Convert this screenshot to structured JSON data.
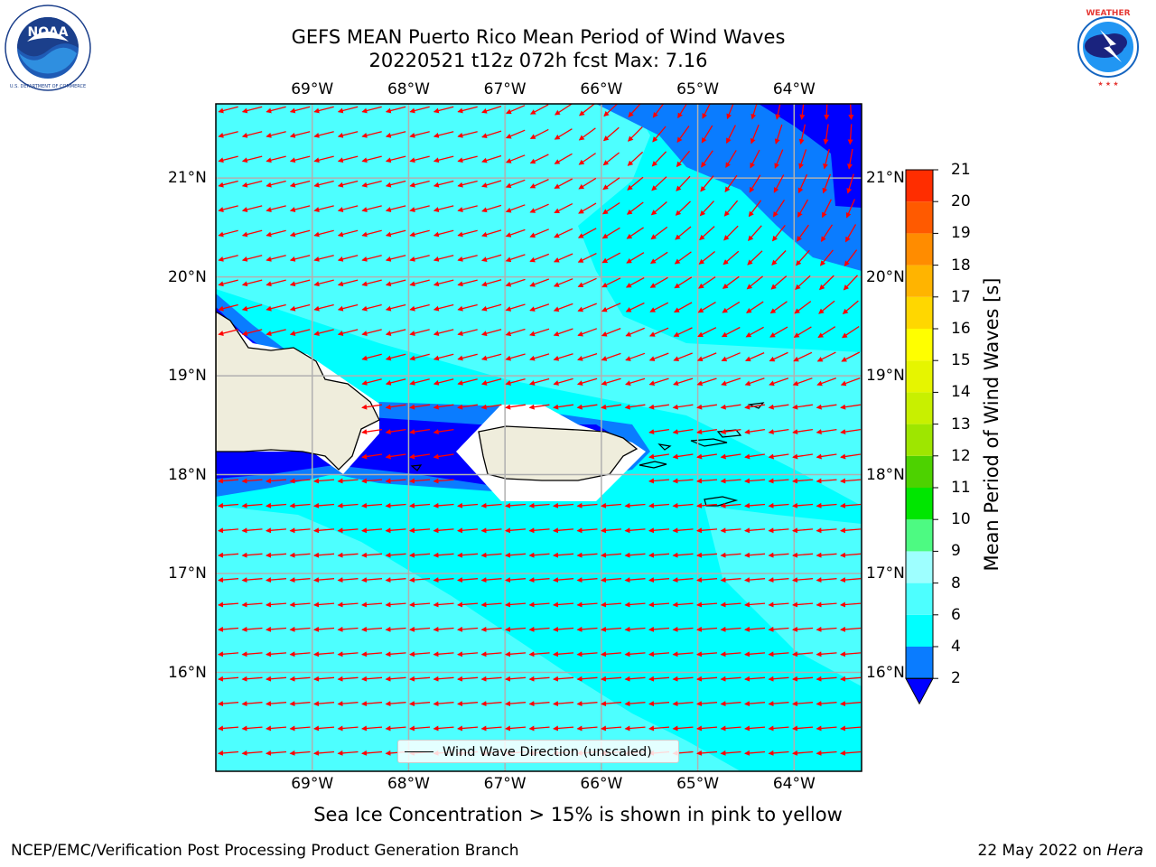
{
  "title": {
    "line1": "GEFS MEAN Puerto Rico Mean Period of Wind Waves",
    "line2": "20220521 t12z 072h fcst   Max: 7.16"
  },
  "logos": {
    "left": {
      "name": "noaa-logo",
      "text": "NOAA",
      "ring_text": "NATIONAL OCEANIC AND ATMOSPHERIC ADMINISTRATION · U.S. DEPARTMENT OF COMMERCE"
    },
    "right": {
      "name": "nws-logo",
      "ring_text": "NATIONAL WEATHER SERVICE"
    }
  },
  "map": {
    "lon_ticks": [
      "69°W",
      "68°W",
      "67°W",
      "66°W",
      "65°W",
      "64°W"
    ],
    "lat_ticks": [
      "21°N",
      "20°N",
      "19°N",
      "18°N",
      "17°N",
      "16°N"
    ],
    "lon_range": [
      -70.0,
      -63.3
    ],
    "lat_range": [
      15.0,
      21.75
    ],
    "legend_label": "Wind Wave Direction (unscaled)",
    "arrow_color": "#ff0000",
    "land_color": "#efeddc",
    "grid": true
  },
  "colorbar": {
    "label": "Mean Period of Wind Waves [s]",
    "ticks": [
      "2",
      "4",
      "6",
      "8",
      "9",
      "10",
      "11",
      "12",
      "13",
      "14",
      "15",
      "16",
      "17",
      "18",
      "19",
      "20",
      "21"
    ],
    "colors": [
      "#0a7cff",
      "#00ffff",
      "#4dffff",
      "#9effff",
      "#4dfa82",
      "#00e600",
      "#4dd200",
      "#9ee600",
      "#c8f000",
      "#e6f500",
      "#ffff00",
      "#ffd700",
      "#ffb400",
      "#ff8c00",
      "#ff5a00",
      "#ff2d00"
    ],
    "under_color": "#0000ff",
    "extend": "min"
  },
  "chart_data": {
    "type": "heatmap",
    "title": "GEFS MEAN Puerto Rico Mean Period of Wind Waves",
    "subtitle": "20220521 t12z 072h fcst   Max: 7.16",
    "variable_label": "Mean Period of Wind Waves [s]",
    "value_max": 7.16,
    "levels": [
      2,
      4,
      6,
      8,
      9,
      10,
      11,
      12,
      13,
      14,
      15,
      16,
      17,
      18,
      19,
      20,
      21
    ],
    "dominant_range": [
      4,
      7.16
    ],
    "wave_direction": "westward (arrows pointing W, turning SW in the north-east)"
  },
  "note": "Sea Ice Concentration > 15% is shown in pink to yellow",
  "footer": {
    "left": "NCEP/EMC/Verification Post Processing Product Generation Branch",
    "right_date": "22 May 2022 on ",
    "right_host": "Hera"
  }
}
